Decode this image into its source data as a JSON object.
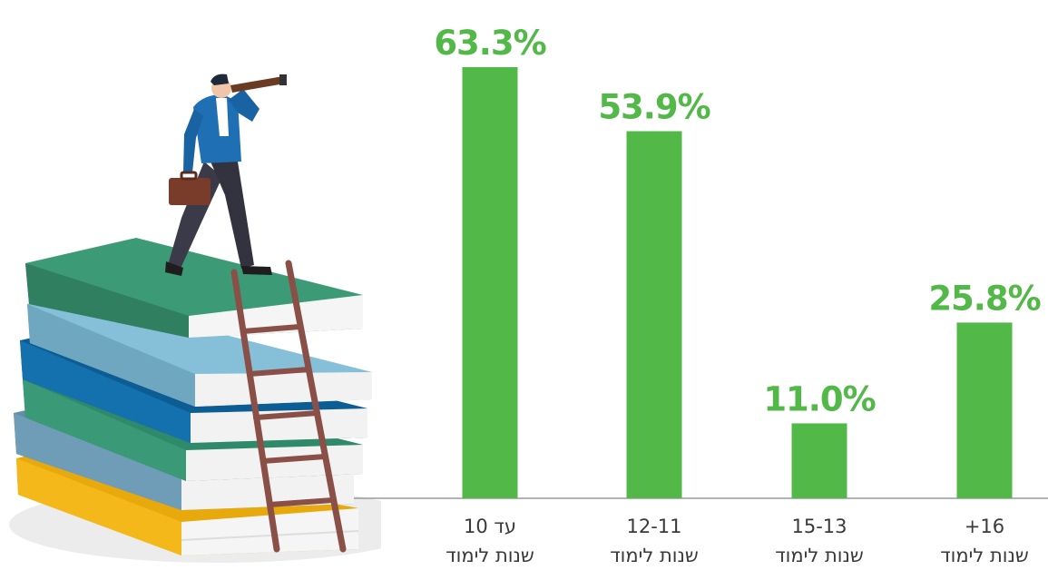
{
  "chart_data": {
    "type": "bar",
    "categories": [
      [
        "עד 10",
        "שנות לימוד"
      ],
      [
        "12-11",
        "שנות לימוד"
      ],
      [
        "15-13",
        "שנות לימוד"
      ],
      [
        "+16",
        "שנות לימוד"
      ]
    ],
    "values": [
      63.3,
      53.9,
      11.0,
      25.8
    ],
    "value_labels": [
      "63.3%",
      "53.9%",
      "11.0%",
      "25.8%"
    ],
    "title": "",
    "xlabel": "",
    "ylabel": "",
    "ylim": [
      0,
      70
    ],
    "grid": false,
    "legend": "none",
    "colors": {
      "bar": "#52b848",
      "label": "#52b848",
      "axis": "#9a9a9a"
    }
  },
  "illustration": {
    "icon": "businessman-telescope-on-books-icon"
  }
}
